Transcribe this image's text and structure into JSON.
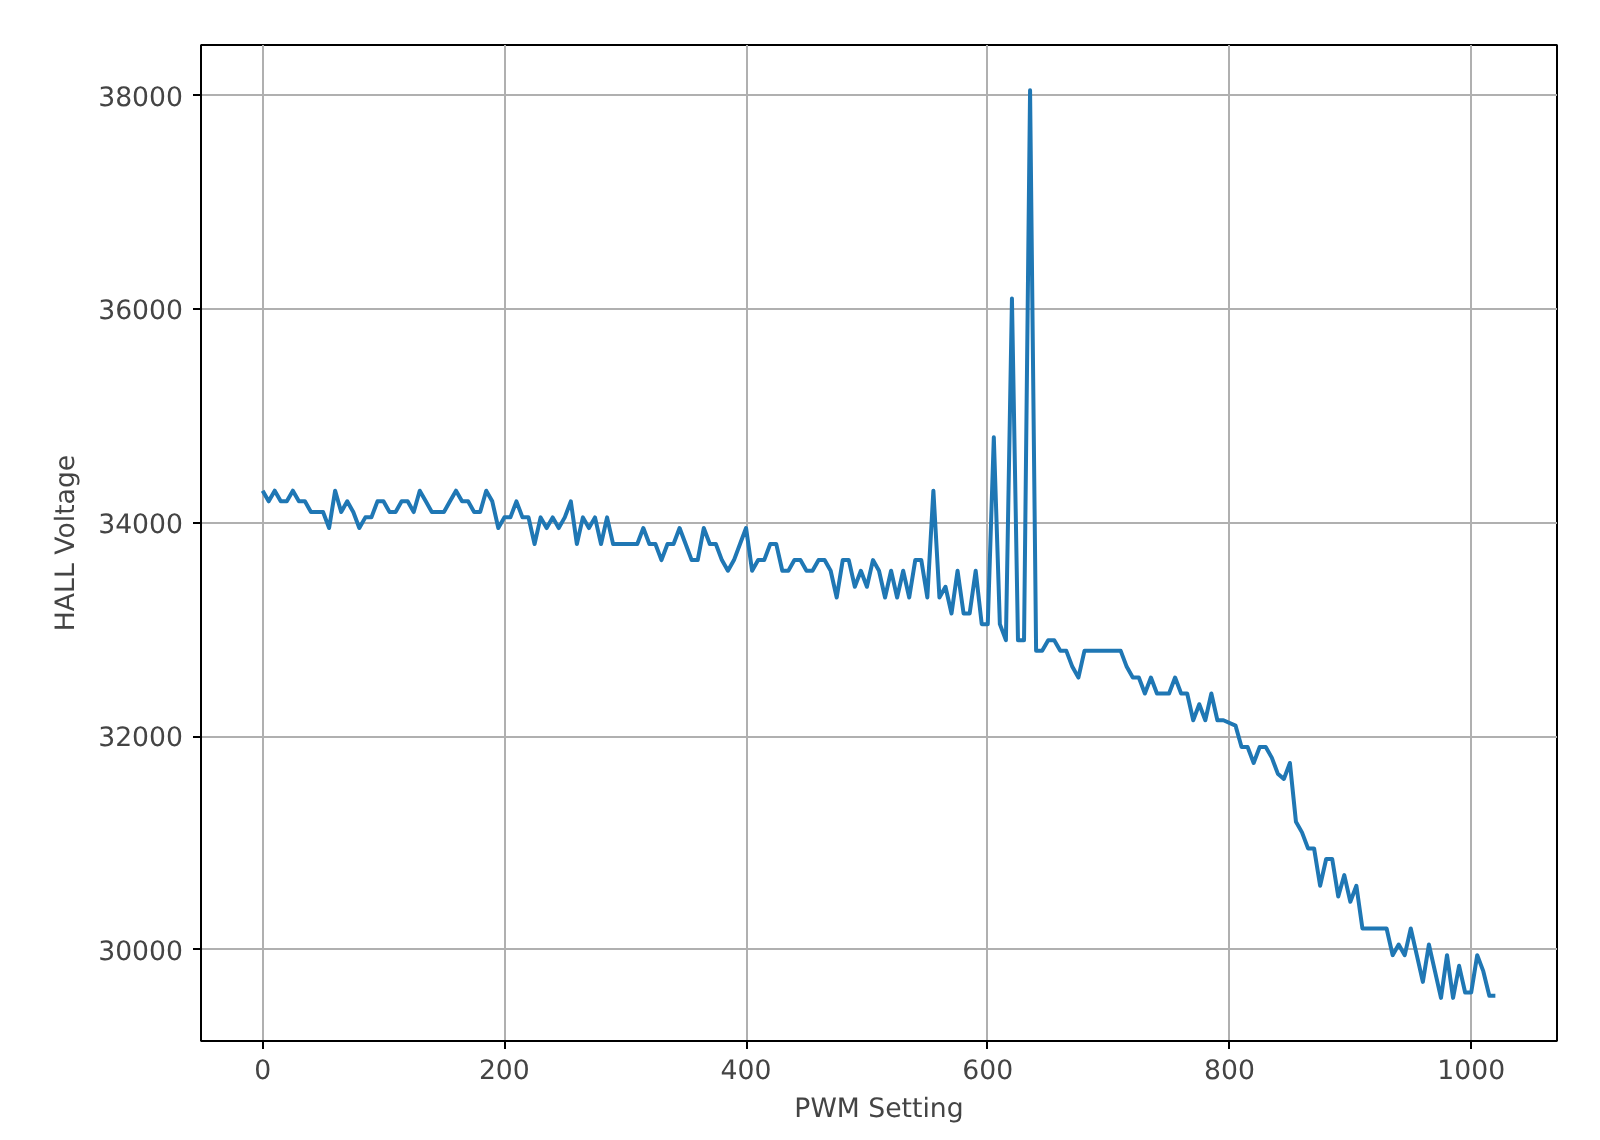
{
  "chart_data": {
    "type": "line",
    "xlabel": "PWM Setting",
    "ylabel": "HALL Voltage",
    "xlim": [
      -51,
      1071
    ],
    "ylim": [
      29146,
      38474
    ],
    "xticks": [
      0,
      200,
      400,
      600,
      800,
      1000
    ],
    "yticks": [
      30000,
      32000,
      34000,
      36000,
      38000
    ],
    "grid": true,
    "marker": "none",
    "line_style": "solid",
    "series": [
      {
        "color": "#1f77b4",
        "x": [
          0,
          5,
          10,
          15,
          20,
          25,
          30,
          35,
          40,
          50,
          55,
          60,
          65,
          70,
          75,
          80,
          85,
          90,
          95,
          100,
          105,
          110,
          115,
          120,
          125,
          130,
          135,
          140,
          150,
          155,
          160,
          165,
          170,
          175,
          180,
          185,
          190,
          195,
          200,
          205,
          210,
          215,
          220,
          225,
          230,
          235,
          240,
          245,
          250,
          255,
          260,
          265,
          270,
          275,
          280,
          285,
          290,
          300,
          310,
          315,
          320,
          325,
          330,
          335,
          340,
          345,
          350,
          355,
          360,
          365,
          370,
          375,
          380,
          385,
          390,
          395,
          400,
          405,
          410,
          415,
          420,
          425,
          430,
          435,
          440,
          445,
          450,
          455,
          460,
          465,
          470,
          475,
          480,
          485,
          490,
          495,
          500,
          505,
          510,
          515,
          520,
          525,
          530,
          535,
          540,
          545,
          550,
          555,
          560,
          565,
          570,
          575,
          580,
          585,
          590,
          595,
          600,
          605,
          610,
          615,
          620,
          625,
          630,
          635,
          640,
          645,
          650,
          655,
          660,
          665,
          670,
          675,
          680,
          710,
          715,
          720,
          725,
          730,
          735,
          740,
          745,
          750,
          755,
          760,
          765,
          770,
          775,
          780,
          785,
          790,
          795,
          805,
          810,
          815,
          820,
          825,
          830,
          835,
          840,
          845,
          850,
          855,
          860,
          865,
          870,
          875,
          880,
          885,
          890,
          895,
          900,
          905,
          910,
          930,
          935,
          940,
          945,
          950,
          955,
          960,
          965,
          970,
          975,
          980,
          985,
          990,
          995,
          1000,
          1005,
          1010,
          1015,
          1020
        ],
        "values": [
          34300,
          34200,
          34300,
          34200,
          34200,
          34300,
          34200,
          34200,
          34100,
          34100,
          33950,
          34300,
          34100,
          34200,
          34100,
          33950,
          34050,
          34050,
          34200,
          34200,
          34100,
          34100,
          34200,
          34200,
          34100,
          34300,
          34200,
          34100,
          34100,
          34200,
          34300,
          34200,
          34200,
          34100,
          34100,
          34300,
          34200,
          33950,
          34050,
          34050,
          34200,
          34050,
          34050,
          33800,
          34050,
          33950,
          34050,
          33950,
          34050,
          34200,
          33800,
          34050,
          33950,
          34050,
          33800,
          34050,
          33800,
          33800,
          33800,
          33950,
          33800,
          33800,
          33650,
          33800,
          33800,
          33950,
          33800,
          33650,
          33650,
          33950,
          33800,
          33800,
          33650,
          33550,
          33650,
          33800,
          33950,
          33550,
          33650,
          33650,
          33800,
          33800,
          33550,
          33550,
          33650,
          33650,
          33550,
          33550,
          33650,
          33650,
          33550,
          33300,
          33650,
          33650,
          33400,
          33550,
          33400,
          33650,
          33550,
          33300,
          33550,
          33300,
          33550,
          33300,
          33650,
          33650,
          33300,
          34300,
          33300,
          33400,
          33150,
          33550,
          33150,
          33150,
          33550,
          33050,
          33050,
          34800,
          33050,
          32900,
          36100,
          32900,
          32900,
          38050,
          32800,
          32800,
          32900,
          32900,
          32800,
          32800,
          32650,
          32550,
          32800,
          32800,
          32650,
          32550,
          32550,
          32400,
          32550,
          32400,
          32400,
          32400,
          32550,
          32400,
          32400,
          32150,
          32300,
          32150,
          32400,
          32150,
          32150,
          32100,
          31900,
          31900,
          31750,
          31900,
          31900,
          31800,
          31650,
          31600,
          31750,
          31200,
          31100,
          30950,
          30950,
          30600,
          30850,
          30850,
          30500,
          30700,
          30450,
          30600,
          30200,
          30200,
          29950,
          30050,
          29950,
          30200,
          29950,
          29700,
          30050,
          29800,
          29550,
          29950,
          29550,
          29850,
          29600,
          29600,
          29950,
          29800,
          29570,
          29570
        ]
      }
    ]
  }
}
